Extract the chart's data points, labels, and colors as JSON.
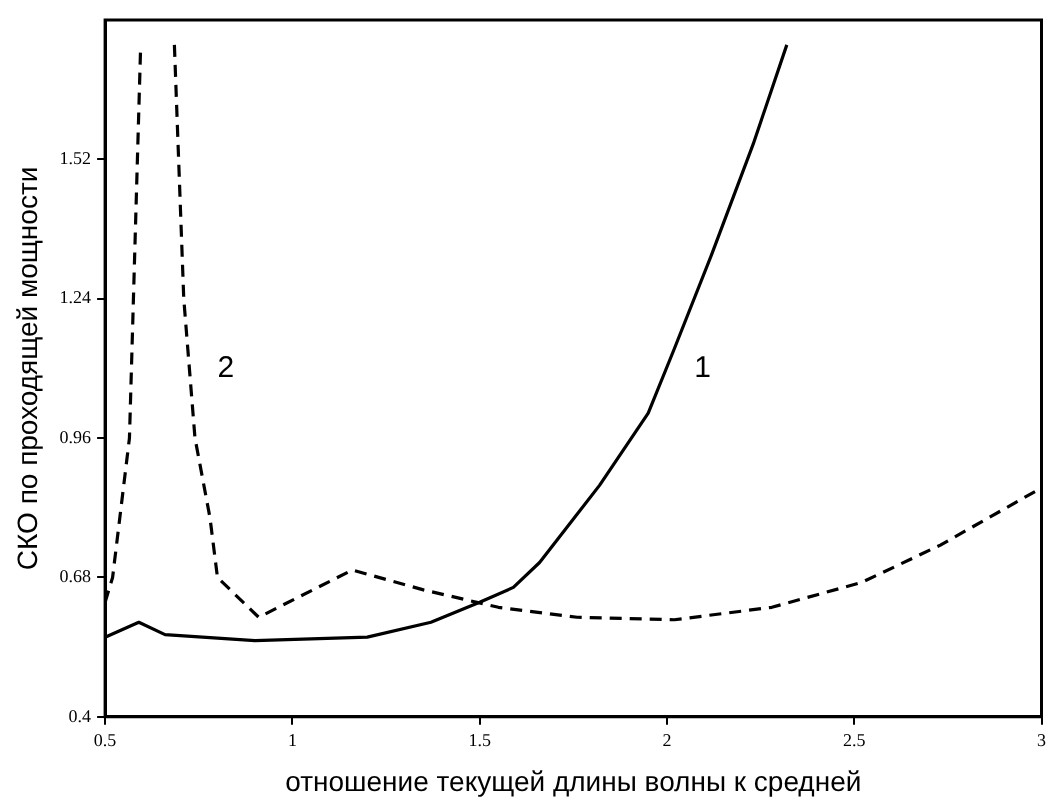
{
  "chart_data": {
    "type": "line",
    "xlabel": "отношение текущей длины волны к средней",
    "ylabel": "СКО по проходящей мощности",
    "xlim": [
      0.5,
      3
    ],
    "xticks": [
      {
        "value": 0.5,
        "label": "0.5"
      },
      1,
      {
        "value": 1.5,
        "label": "1.5"
      },
      2,
      {
        "value": 2.5,
        "label": "2.5"
      },
      3
    ],
    "ylim": [
      0.4,
      1.8
    ],
    "yticks": [
      {
        "value": 0.4,
        "label": "0.4"
      },
      {
        "value": 0.68,
        "label": "0.68"
      },
      {
        "value": 0.96,
        "label": "0.96"
      },
      {
        "value": 1.24,
        "label": "1.24"
      },
      {
        "value": 1.52,
        "label": "1.52"
      }
    ],
    "grid": false,
    "legend": false,
    "marker": "none",
    "series": [
      {
        "name": "1",
        "color": "#000000",
        "line_style": "solid",
        "x": [
          0.5,
          0.59,
          0.66,
          0.9,
          1.2,
          1.37,
          1.5,
          1.59,
          1.66,
          1.82,
          1.95,
          2.02,
          2.12,
          2.23,
          2.32
        ],
        "values": [
          0.56,
          0.59,
          0.565,
          0.553,
          0.56,
          0.59,
          0.63,
          0.66,
          0.71,
          0.865,
          1.01,
          1.14,
          1.33,
          1.55,
          1.75
        ]
      },
      {
        "name": "2",
        "color": "#000000",
        "line_style": "dashed",
        "x": [
          0.5,
          0.52,
          0.565,
          0.595,
          0.64,
          0.685,
          0.71,
          0.74,
          0.78,
          0.8,
          0.91,
          1.16,
          1.35,
          1.55,
          1.76,
          2.02,
          2.28,
          2.52,
          2.73,
          3.0
        ],
        "values": [
          0.63,
          0.68,
          0.96,
          1.75,
          null,
          1.75,
          1.24,
          0.96,
          0.8,
          0.68,
          0.6,
          0.695,
          0.655,
          0.62,
          0.6,
          0.595,
          0.62,
          0.67,
          0.745,
          0.86
        ]
      }
    ]
  }
}
